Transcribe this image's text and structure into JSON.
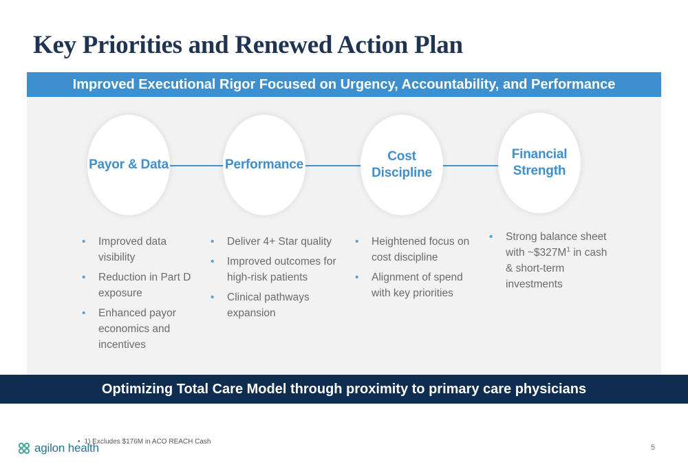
{
  "title": "Key Priorities and Renewed Action Plan",
  "top_banner": "Improved Executional Rigor Focused on Urgency, Accountability, and Performance",
  "pillars": [
    {
      "label": "Payor & Data",
      "bullets": [
        "Improved data visibility",
        "Reduction in Part D exposure",
        "Enhanced payor economics and incentives"
      ]
    },
    {
      "label": "Performance",
      "bullets": [
        "Deliver 4+ Star quality",
        "Improved outcomes for high-risk patients",
        "Clinical pathways expansion"
      ]
    },
    {
      "label": "Cost\nDiscipline",
      "bullets": [
        "Heightened focus on cost discipline",
        "Alignment of spend with key priorities"
      ]
    },
    {
      "label": "Financial\nStrength",
      "bullet_parts": {
        "before": "Strong balance sheet with ~$327M",
        "sup": "1",
        "after": " in cash & short-term investments"
      }
    }
  ],
  "bottom_banner": "Optimizing Total Care Model through proximity to primary care physicians",
  "footnote": {
    "bullet": "•",
    "text": "1) Excludes $176M in ACO REACH Cash"
  },
  "logo": {
    "text_part1": "agilon",
    "text_part2": " health",
    "color_mark": "#4aa6a0"
  },
  "page_number": "5",
  "colors": {
    "title": "#1f3352",
    "accent_blue": "#3e8fce",
    "navy": "#0f2d4f",
    "panel": "#f2f2f2"
  }
}
